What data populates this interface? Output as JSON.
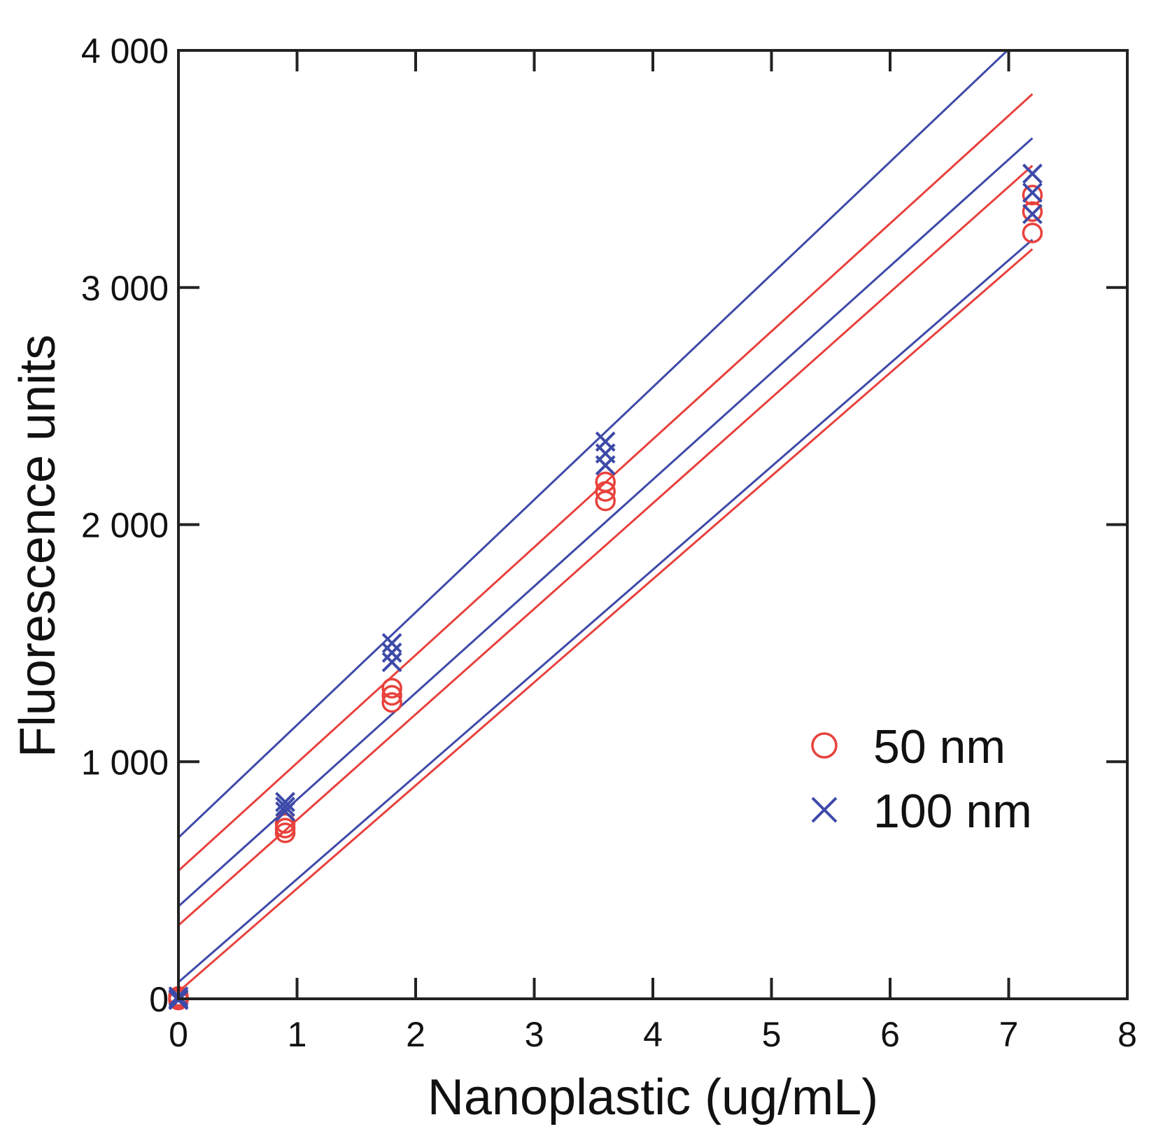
{
  "chart_data": {
    "type": "scatter",
    "title": "",
    "xlabel": "Nanoplastic (ug/mL)",
    "ylabel": "Fluorescence units",
    "xlim": [
      0,
      8
    ],
    "ylim": [
      0,
      4000
    ],
    "xticks": [
      0,
      1,
      2,
      3,
      4,
      5,
      6,
      7,
      8
    ],
    "xtick_labels": [
      "0",
      "1",
      "2",
      "3",
      "4",
      "5",
      "6",
      "7",
      "8"
    ],
    "yticks": [
      0,
      1000,
      2000,
      3000,
      4000
    ],
    "ytick_labels": [
      "0",
      "1 000",
      "2 000",
      "3 000",
      "4 000"
    ],
    "grid": false,
    "legend_position": "lower-right",
    "series": [
      {
        "name": "50 nm",
        "marker": "circle",
        "color": "#e8413c",
        "points": [
          {
            "x": 0,
            "y": 0
          },
          {
            "x": 0,
            "y": 10
          },
          {
            "x": 0,
            "y": -5
          },
          {
            "x": 0.9,
            "y": 700
          },
          {
            "x": 0.9,
            "y": 720
          },
          {
            "x": 0.9,
            "y": 740
          },
          {
            "x": 1.8,
            "y": 1250
          },
          {
            "x": 1.8,
            "y": 1280
          },
          {
            "x": 1.8,
            "y": 1310
          },
          {
            "x": 3.6,
            "y": 2100
          },
          {
            "x": 3.6,
            "y": 2140
          },
          {
            "x": 3.6,
            "y": 2180
          },
          {
            "x": 7.2,
            "y": 3230
          },
          {
            "x": 7.2,
            "y": 3320
          },
          {
            "x": 7.2,
            "y": 3390
          }
        ],
        "fit_lines": [
          {
            "intercept": 540,
            "slope": 455
          },
          {
            "intercept": 310,
            "slope": 445
          },
          {
            "intercept": 30,
            "slope": 435
          }
        ]
      },
      {
        "name": "100 nm",
        "marker": "x",
        "color": "#3d4aa8",
        "points": [
          {
            "x": 0,
            "y": 0
          },
          {
            "x": 0,
            "y": 10
          },
          {
            "x": 0,
            "y": -5
          },
          {
            "x": 0.9,
            "y": 790
          },
          {
            "x": 0.9,
            "y": 810
          },
          {
            "x": 0.9,
            "y": 830
          },
          {
            "x": 1.8,
            "y": 1420
          },
          {
            "x": 1.8,
            "y": 1460
          },
          {
            "x": 1.8,
            "y": 1500
          },
          {
            "x": 3.6,
            "y": 2250
          },
          {
            "x": 3.6,
            "y": 2300
          },
          {
            "x": 3.6,
            "y": 2350
          },
          {
            "x": 7.2,
            "y": 3310
          },
          {
            "x": 7.2,
            "y": 3400
          },
          {
            "x": 7.2,
            "y": 3480
          }
        ],
        "fit_lines": [
          {
            "intercept": 680,
            "slope": 475
          },
          {
            "intercept": 390,
            "slope": 450
          },
          {
            "intercept": 70,
            "slope": 435
          }
        ]
      }
    ],
    "legend": [
      {
        "label": "50 nm",
        "marker": "circle",
        "color": "#e8413c"
      },
      {
        "label": "100 nm",
        "marker": "x",
        "color": "#3d4aa8"
      }
    ]
  }
}
